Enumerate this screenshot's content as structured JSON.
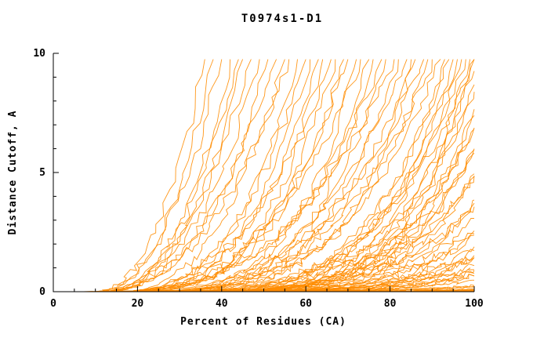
{
  "title": "T0974s1-D1",
  "chart_data": {
    "type": "line",
    "title": "T0974s1-D1",
    "xlabel": "Percent of Residues (CA)",
    "ylabel": "Distance Cutoff, A",
    "xlim": [
      0,
      100
    ],
    "ylim": [
      0,
      10
    ],
    "x_major_ticks": [
      0,
      20,
      40,
      60,
      80,
      100
    ],
    "x_minor_step": 5,
    "y_major_ticks": [
      0,
      5,
      10
    ],
    "y_minor_step": 1,
    "grid": false,
    "legend": "none",
    "line_color": "#ff8c00",
    "axis_color": "#000000",
    "background": "#ffffff",
    "series_count": 88,
    "y_top_clip": 9.75,
    "curves_format": [
      "x_start_percent",
      "x_end_percent_at_cutoff_max",
      "shape_exponent"
    ],
    "curves": [
      [
        10,
        36,
        2.2
      ],
      [
        8,
        38,
        2.6
      ],
      [
        12,
        40,
        2.0
      ],
      [
        9,
        42,
        2.8
      ],
      [
        11,
        44,
        2.3
      ],
      [
        6,
        45,
        3.0
      ],
      [
        13,
        47,
        2.1
      ],
      [
        10,
        49,
        2.5
      ],
      [
        8,
        51,
        2.9
      ],
      [
        12,
        53,
        2.2
      ],
      [
        14,
        55,
        2.6
      ],
      [
        9,
        56,
        2.4
      ],
      [
        11,
        58,
        3.2
      ],
      [
        13,
        60,
        2.8
      ],
      [
        9,
        61,
        3.6
      ],
      [
        15,
        63,
        3.0
      ],
      [
        10,
        64,
        4.0
      ],
      [
        12,
        66,
        2.7
      ],
      [
        14,
        67,
        3.4
      ],
      [
        8,
        69,
        3.8
      ],
      [
        11,
        70,
        3.1
      ],
      [
        13,
        72,
        4.2
      ],
      [
        10,
        73,
        2.9
      ],
      [
        15,
        75,
        3.5
      ],
      [
        12,
        76,
        4.4
      ],
      [
        9,
        78,
        3.2
      ],
      [
        14,
        79,
        3.9
      ],
      [
        11,
        81,
        2.8
      ],
      [
        13,
        82,
        4.1
      ],
      [
        10,
        84,
        3.3
      ],
      [
        15,
        85,
        3.7
      ],
      [
        12,
        86,
        4.5
      ],
      [
        16,
        88,
        3.0
      ],
      [
        9,
        89,
        4.3
      ],
      [
        14,
        90,
        3.4
      ],
      [
        11,
        92,
        3.8
      ],
      [
        12,
        93,
        4.8
      ],
      [
        15,
        94,
        4.2
      ],
      [
        10,
        95,
        5.2
      ],
      [
        13,
        96,
        4.6
      ],
      [
        16,
        97,
        5.0
      ],
      [
        11,
        98,
        4.4
      ],
      [
        14,
        99,
        5.4
      ],
      [
        12,
        100,
        4.0
      ],
      [
        15,
        100,
        5.8
      ],
      [
        10,
        101,
        4.7
      ],
      [
        13,
        102,
        5.1
      ],
      [
        16,
        103,
        4.3
      ],
      [
        11,
        104,
        5.5
      ],
      [
        14,
        105,
        4.9
      ],
      [
        12,
        106,
        5.3
      ],
      [
        15,
        107,
        4.5
      ],
      [
        10,
        108,
        5.7
      ],
      [
        13,
        109,
        5.0
      ],
      [
        16,
        110,
        4.6
      ],
      [
        12,
        111,
        5.9
      ],
      [
        14,
        112,
        5.2
      ],
      [
        11,
        114,
        4.8
      ],
      [
        15,
        116,
        5.6
      ],
      [
        12,
        118,
        5.0
      ],
      [
        16,
        120,
        5.4
      ],
      [
        10,
        122,
        4.6
      ],
      [
        13,
        124,
        5.8
      ],
      [
        15,
        126,
        5.2
      ],
      [
        11,
        128,
        4.9
      ],
      [
        14,
        130,
        5.5
      ],
      [
        12,
        132,
        6.0
      ],
      [
        16,
        134,
        5.1
      ],
      [
        10,
        136,
        5.7
      ],
      [
        13,
        138,
        5.3
      ],
      [
        15,
        140,
        6.2
      ],
      [
        12,
        142,
        5.6
      ],
      [
        14,
        145,
        6.4
      ],
      [
        11,
        148,
        5.9
      ],
      [
        13,
        160,
        4.5
      ],
      [
        15,
        170,
        5.0
      ],
      [
        11,
        180,
        4.2
      ],
      [
        14,
        190,
        5.5
      ],
      [
        12,
        200,
        4.8
      ],
      [
        16,
        210,
        5.2
      ],
      [
        10,
        220,
        4.4
      ],
      [
        13,
        230,
        5.6
      ],
      [
        15,
        240,
        4.9
      ],
      [
        12,
        250,
        5.3
      ],
      [
        14,
        260,
        4.6
      ],
      [
        11,
        275,
        5.8
      ],
      [
        16,
        290,
        5.1
      ],
      [
        13,
        310,
        4.7
      ]
    ]
  }
}
